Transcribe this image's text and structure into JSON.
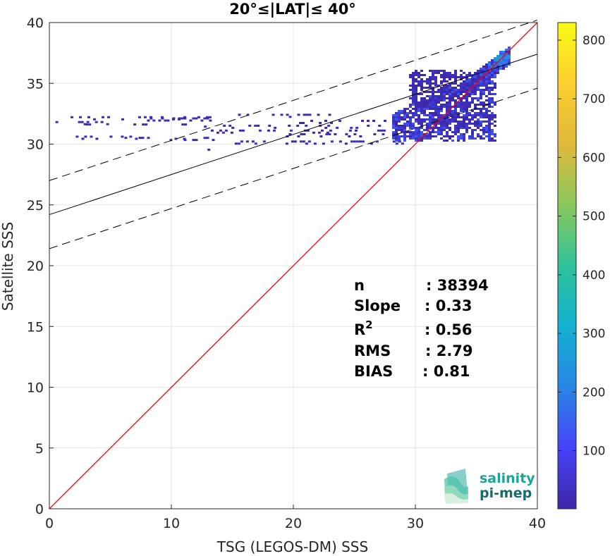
{
  "chart_data": {
    "type": "heatmap",
    "title": "20°≤|LAT|≤ 40°",
    "xlabel": "TSG (LEGOS-DM) SSS",
    "ylabel": "Satellite SSS",
    "xlim": [
      0,
      40
    ],
    "ylim": [
      0,
      40
    ],
    "xticks": [
      "0",
      "10",
      "20",
      "30",
      "40"
    ],
    "yticks": [
      "0",
      "5",
      "10",
      "15",
      "20",
      "25",
      "30",
      "35",
      "40"
    ],
    "grid": true,
    "colorbar": {
      "range": [
        1,
        830
      ],
      "ticks": [
        "100",
        "200",
        "300",
        "400",
        "500",
        "600",
        "700",
        "800"
      ],
      "colormap": [
        "#3e26a8",
        "#4743f8",
        "#2a86e5",
        "#13b1d1",
        "#2fc29a",
        "#89c85b",
        "#e0b93a",
        "#fcce2e",
        "#f9fb15"
      ]
    },
    "lines": {
      "identity": {
        "slope": 1,
        "intercept": 0,
        "color": "#ff0000"
      },
      "regression": {
        "slope": 0.33,
        "intercept": 24.2,
        "color": "#000000"
      },
      "regression_upper": {
        "slope": 0.33,
        "intercept": 27.0,
        "color": "#000000",
        "style": "dashed"
      },
      "regression_lower": {
        "slope": 0.33,
        "intercept": 21.4,
        "color": "#000000",
        "style": "dashed"
      }
    },
    "stats": [
      {
        "label": "n",
        "value": ": 38394"
      },
      {
        "label": "Slope",
        "value": ": 0.33"
      },
      {
        "label": "R",
        "sup": "2",
        "value": ": 0.56"
      },
      {
        "label": "RMS",
        "value": ": 2.79"
      },
      {
        "label": "BIAS",
        "value": ": 0.81"
      }
    ],
    "density_clusters": [
      {
        "x": [
          34,
          37.5
        ],
        "y": [
          34.5,
          37.5
        ],
        "density": "high"
      },
      {
        "x": [
          28,
          36
        ],
        "y": [
          30.5,
          34.5
        ],
        "density": "medium"
      },
      {
        "x": [
          1.5,
          13
        ],
        "y": [
          30.5,
          32.5
        ],
        "density": "sparse"
      },
      {
        "x": [
          14,
          28
        ],
        "y": [
          30.2,
          32.5
        ],
        "density": "sparse"
      }
    ]
  },
  "logo": {
    "line1": "salinity",
    "line2": "pi-mep"
  }
}
